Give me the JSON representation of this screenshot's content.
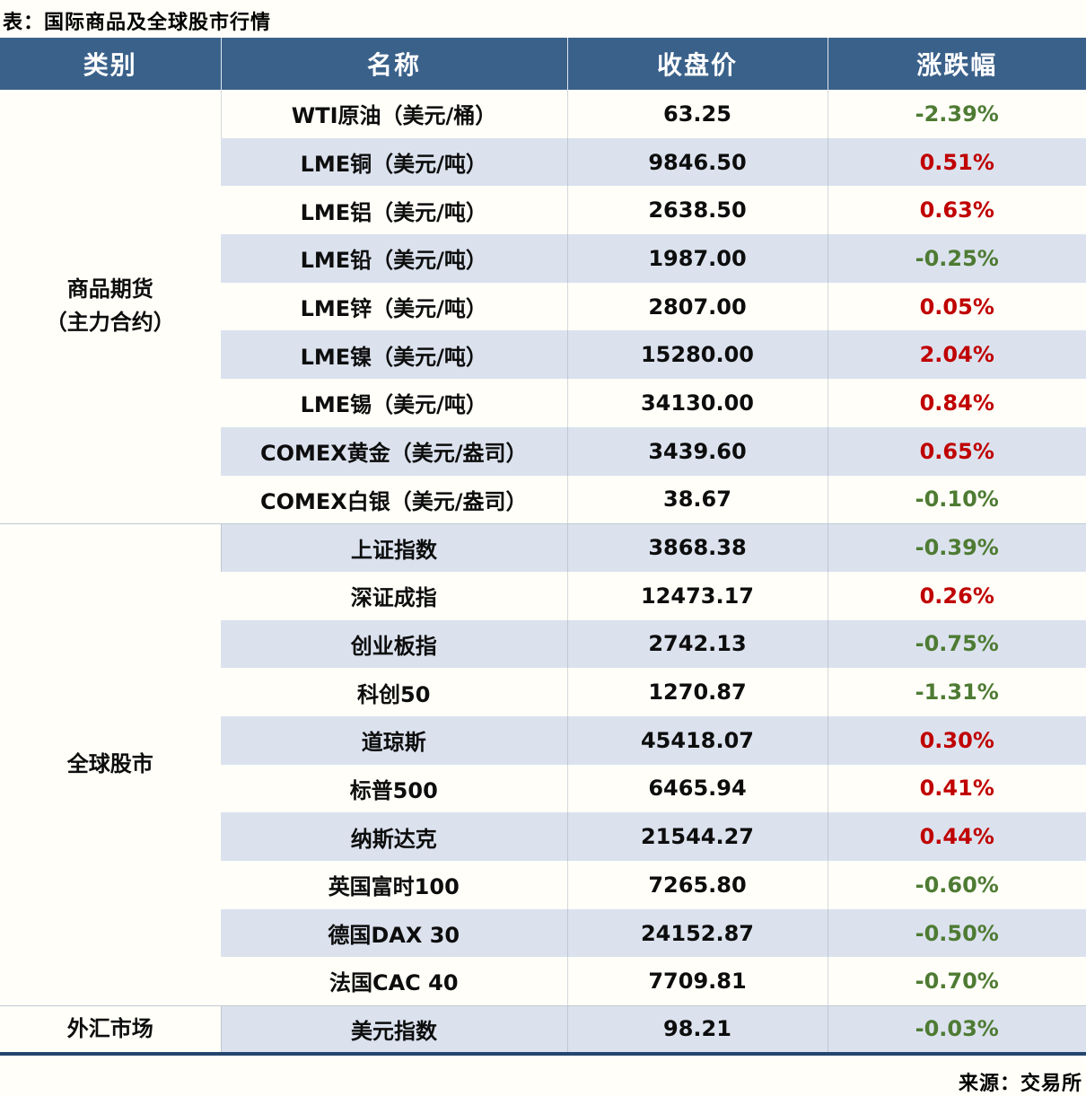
{
  "page": {
    "title": "表：国际商品及全球股市行情",
    "source": "来源：交易所"
  },
  "colors": {
    "header_bg": "#3A618A",
    "header_text": "#FFFFFF",
    "stripe_bg": "#DBE2EE",
    "page_bg": "#FFFEF8",
    "up_red": "#C00000",
    "down_green": "#4E7B33",
    "bottom_border_navy": "#24466E"
  },
  "chart_data": {
    "type": "table",
    "title": "表：国际商品及全球股市行情",
    "source": "来源：交易所",
    "columns": [
      "类别",
      "名称",
      "收盘价",
      "涨跌幅"
    ],
    "sections": [
      {
        "category": "商品期货\n（主力合约）",
        "rows": [
          {
            "name": "WTI原油（美元/桶）",
            "close": "63.25",
            "change": "-2.39%"
          },
          {
            "name": "LME铜（美元/吨）",
            "close": "9846.50",
            "change": "0.51%"
          },
          {
            "name": "LME铝（美元/吨）",
            "close": "2638.50",
            "change": "0.63%"
          },
          {
            "name": "LME铅（美元/吨）",
            "close": "1987.00",
            "change": "-0.25%"
          },
          {
            "name": "LME锌（美元/吨）",
            "close": "2807.00",
            "change": "0.05%"
          },
          {
            "name": "LME镍（美元/吨）",
            "close": "15280.00",
            "change": "2.04%"
          },
          {
            "name": "LME锡（美元/吨）",
            "close": "34130.00",
            "change": "0.84%"
          },
          {
            "name": "COMEX黄金（美元/盎司）",
            "close": "3439.60",
            "change": "0.65%"
          },
          {
            "name": "COMEX白银（美元/盎司）",
            "close": "38.67",
            "change": "-0.10%"
          }
        ]
      },
      {
        "category": "全球股市",
        "rows": [
          {
            "name": "上证指数",
            "close": "3868.38",
            "change": "-0.39%"
          },
          {
            "name": "深证成指",
            "close": "12473.17",
            "change": "0.26%"
          },
          {
            "name": "创业板指",
            "close": "2742.13",
            "change": "-0.75%"
          },
          {
            "name": "科创50",
            "close": "1270.87",
            "change": "-1.31%"
          },
          {
            "name": "道琼斯",
            "close": "45418.07",
            "change": "0.30%"
          },
          {
            "name": "标普500",
            "close": "6465.94",
            "change": "0.41%"
          },
          {
            "name": "纳斯达克",
            "close": "21544.27",
            "change": "0.44%"
          },
          {
            "name": "英国富时100",
            "close": "7265.80",
            "change": "-0.60%"
          },
          {
            "name": "德国DAX 30",
            "close": "24152.87",
            "change": "-0.50%"
          },
          {
            "name": "法国CAC 40",
            "close": "7709.81",
            "change": "-0.70%"
          }
        ]
      },
      {
        "category": "外汇市场",
        "rows": [
          {
            "name": "美元指数",
            "close": "98.21",
            "change": "-0.03%"
          }
        ]
      }
    ]
  }
}
